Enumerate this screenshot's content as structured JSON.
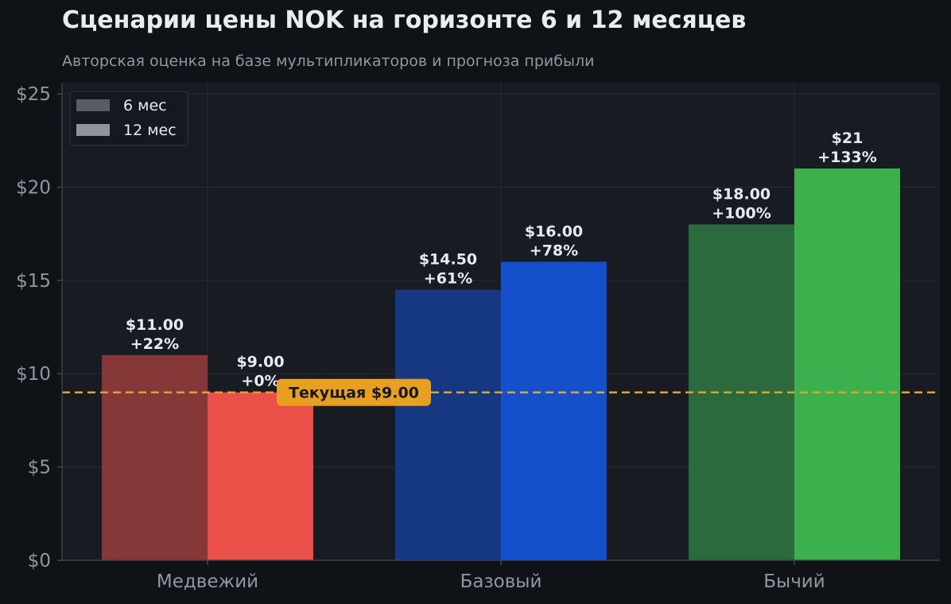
{
  "title": "Сценарии цены NOK на горизонте 6 и 12 месяцев",
  "subtitle": "Авторская оценка на базе мультипликаторов и прогноза прибыли",
  "chart_data": {
    "type": "bar",
    "categories": [
      "Медвежий",
      "Базовый",
      "Бычий"
    ],
    "series": [
      {
        "name": "6 мес",
        "values": [
          11.0,
          14.5,
          18.0
        ],
        "labels": [
          "$11.00\n+22%",
          "$14.50\n+61%",
          "$18.00\n+100%"
        ]
      },
      {
        "name": "12 мес",
        "values": [
          9.0,
          16.0,
          21.0
        ],
        "labels": [
          "$9.00\n+0%",
          "$16.00\n+78%",
          "$21\n+133%"
        ]
      }
    ],
    "colors": {
      "6 мес": [
        "#863838",
        "#163882",
        "#2a6a3c"
      ],
      "12 мес": [
        "#ea5048",
        "#1550cc",
        "#3cb04c"
      ],
      "legend_6": "#575c66",
      "legend_12": "#8e949c",
      "reference": "#e8a020",
      "grid": "#262b33",
      "axes_bg": "#181b22"
    },
    "ylim": [
      0,
      25.6
    ],
    "yticks": [
      0,
      5,
      10,
      15,
      20,
      25
    ],
    "ytick_labels": [
      "$0",
      "$5",
      "$10",
      "$15",
      "$20",
      "$25"
    ],
    "reference_line": {
      "value": 9.0,
      "label": "Текущая $9.00"
    },
    "legend_position": "top-left",
    "grid": true
  }
}
